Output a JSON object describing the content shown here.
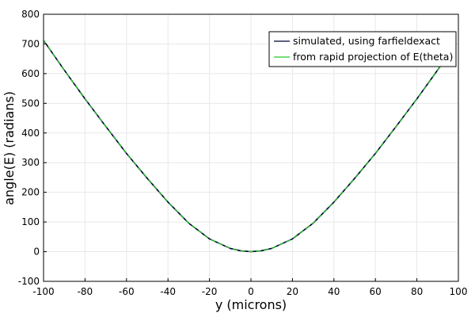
{
  "chart_data": {
    "type": "line",
    "xlabel": "y (microns)",
    "ylabel": "angle(E) (radians)",
    "xlim": [
      -100,
      100
    ],
    "ylim": [
      -100,
      800
    ],
    "xticks": [
      -100,
      -80,
      -60,
      -40,
      -20,
      0,
      20,
      40,
      60,
      80,
      100
    ],
    "yticks": [
      -100,
      0,
      100,
      200,
      300,
      400,
      500,
      600,
      700,
      800
    ],
    "grid": true,
    "legend_position": "top-right",
    "series": [
      {
        "name": "simulated, using farfieldexact",
        "color": "#000033",
        "x": [
          -100,
          -90,
          -80,
          -70,
          -60,
          -50,
          -40,
          -30,
          -20,
          -10,
          -5,
          0,
          5,
          10,
          20,
          30,
          40,
          50,
          60,
          70,
          80,
          90,
          95
        ],
        "y": [
          712,
          612,
          515,
          422,
          331,
          247,
          167,
          96,
          43,
          11,
          3,
          0,
          3,
          11,
          43,
          96,
          167,
          247,
          331,
          422,
          515,
          612,
          662
        ]
      },
      {
        "name": "from rapid projection of E(theta)",
        "color": "#22cc22",
        "x": [
          -100,
          -90,
          -80,
          -70,
          -60,
          -50,
          -40,
          -30,
          -20,
          -10,
          -5,
          0,
          5,
          10,
          20,
          30,
          40,
          50,
          60,
          70,
          80,
          90,
          95
        ],
        "y": [
          712,
          612,
          515,
          422,
          331,
          247,
          167,
          96,
          43,
          11,
          3,
          0,
          3,
          11,
          43,
          96,
          167,
          247,
          331,
          422,
          515,
          612,
          662
        ]
      }
    ]
  }
}
